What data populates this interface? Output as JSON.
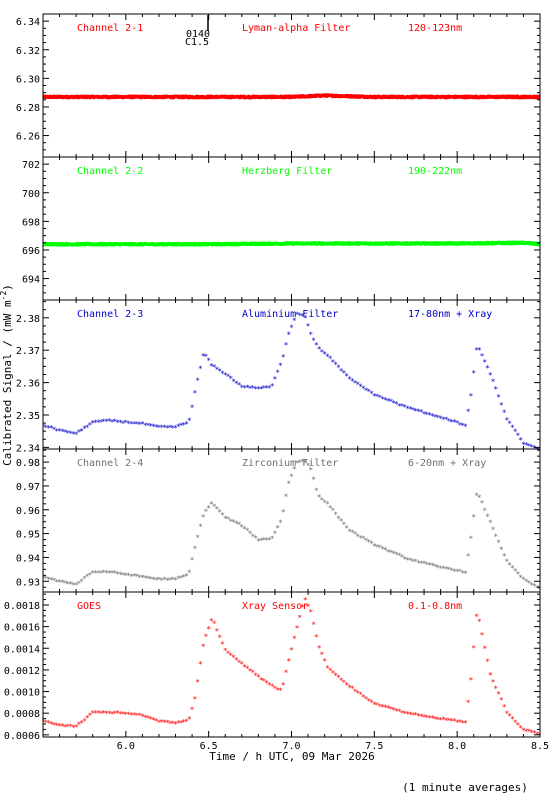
{
  "figure": {
    "ylabel": "Calibrated Signal / (mW m",
    "ylabel_sup": "-2",
    "ylabel_close": ")",
    "xlabel": "Time / h UTC, 09 Mar 2026",
    "footnote": "(1 minute averages)",
    "marker_label_top": "0140",
    "marker_label_bottom": "C1.5",
    "colors": {
      "axes": "#000000",
      "red": "#ff0000",
      "green": "#00ff00",
      "blue": "#0000cc",
      "gray": "#707070",
      "xray": "#ff0000"
    }
  },
  "chart_data": [
    {
      "type": "scatter",
      "labels": [
        "Channel 2-1",
        "Lyman-alpha Filter",
        "120-123nm"
      ],
      "color": "red",
      "ylim": [
        6.245,
        6.345
      ],
      "yticks": [
        6.26,
        6.28,
        6.3,
        6.32,
        6.34
      ],
      "ytick_labels": [
        "6.26",
        "6.28",
        "6.30",
        "6.32",
        "6.34"
      ],
      "x": [
        5.5,
        6.0,
        6.5,
        7.0,
        7.2,
        7.5,
        8.0,
        8.5
      ],
      "y": [
        6.287,
        6.287,
        6.287,
        6.287,
        6.288,
        6.287,
        6.287,
        6.287
      ]
    },
    {
      "type": "scatter",
      "labels": [
        "Channel 2-2",
        "Herzberg Filter",
        "190-222nm"
      ],
      "color": "green",
      "ylim": [
        692.5,
        702.5
      ],
      "yticks": [
        694,
        696,
        698,
        700,
        702
      ],
      "ytick_labels": [
        "694",
        "696",
        "698",
        "700",
        "702"
      ],
      "x": [
        5.5,
        6.0,
        6.5,
        7.0,
        7.5,
        8.0,
        8.4,
        8.5
      ],
      "y": [
        696.4,
        696.4,
        696.4,
        696.45,
        696.45,
        696.45,
        696.5,
        696.4
      ]
    },
    {
      "type": "scatter",
      "labels": [
        "Channel 2-3",
        "Aluminium Filter",
        "17-80nm + Xray"
      ],
      "color": "blue",
      "ylim": [
        2.3395,
        2.3855
      ],
      "yticks": [
        2.34,
        2.35,
        2.36,
        2.37,
        2.38
      ],
      "ytick_labels": [
        "2.34",
        "2.35",
        "2.36",
        "2.37",
        "2.38"
      ],
      "x": [
        5.5,
        5.6,
        5.7,
        5.8,
        5.9,
        6.0,
        6.1,
        6.2,
        6.3,
        6.38,
        6.42,
        6.47,
        6.52,
        6.6,
        6.7,
        6.8,
        6.88,
        6.94,
        6.98,
        7.03,
        7.08,
        7.12,
        7.16,
        7.22,
        7.35,
        7.5,
        7.7,
        7.9,
        8.05,
        8.08,
        8.12,
        8.2,
        8.3,
        8.4,
        8.5
      ],
      "y": [
        2.3465,
        2.345,
        2.344,
        2.3475,
        2.348,
        2.3475,
        2.347,
        2.346,
        2.346,
        2.3475,
        2.3575,
        2.369,
        2.365,
        2.3625,
        2.3585,
        2.358,
        2.3585,
        2.366,
        2.3745,
        2.381,
        2.3805,
        2.3745,
        2.3705,
        2.368,
        2.361,
        2.356,
        2.352,
        2.349,
        2.3465,
        2.3545,
        2.3715,
        2.3625,
        2.3485,
        2.341,
        2.339
      ]
    },
    {
      "type": "scatter",
      "labels": [
        "Channel 2-4",
        "Zirconium Filter",
        "6-20nm + Xray"
      ],
      "color": "gray",
      "ylim": [
        0.9255,
        0.9855
      ],
      "yticks": [
        0.93,
        0.94,
        0.95,
        0.96,
        0.97,
        0.98
      ],
      "ytick_labels": [
        "0.93",
        "0.94",
        "0.95",
        "0.96",
        "0.97",
        "0.98"
      ],
      "x": [
        5.5,
        5.6,
        5.7,
        5.8,
        5.9,
        6.0,
        6.1,
        6.2,
        6.3,
        6.38,
        6.42,
        6.47,
        6.52,
        6.6,
        6.7,
        6.8,
        6.88,
        6.94,
        6.98,
        7.03,
        7.08,
        7.12,
        7.16,
        7.22,
        7.35,
        7.5,
        7.7,
        7.9,
        8.05,
        8.08,
        8.12,
        8.2,
        8.3,
        8.4,
        8.5
      ],
      "y": [
        0.9315,
        0.9295,
        0.9285,
        0.9335,
        0.9335,
        0.9325,
        0.9315,
        0.9305,
        0.9305,
        0.9325,
        0.945,
        0.958,
        0.9625,
        0.9565,
        0.953,
        0.947,
        0.9475,
        0.9555,
        0.9705,
        0.9795,
        0.9805,
        0.9765,
        0.9655,
        0.962,
        0.951,
        0.945,
        0.939,
        0.9355,
        0.9335,
        0.946,
        0.9675,
        0.9545,
        0.938,
        0.9305,
        0.9265
      ]
    },
    {
      "type": "scatter",
      "labels": [
        "GOES",
        "Xray Sensor",
        "0.1-0.8nm"
      ],
      "color": "xray",
      "ylim": [
        0.00058,
        0.00192
      ],
      "yticks": [
        0.0006,
        0.0008,
        0.001,
        0.0012,
        0.0014,
        0.0016,
        0.0018
      ],
      "ytick_labels": [
        "0.0006",
        "0.0008",
        "0.0010",
        "0.0012",
        "0.0014",
        "0.0016",
        "0.0018"
      ],
      "x": [
        5.5,
        5.6,
        5.7,
        5.75,
        5.8,
        5.9,
        6.0,
        6.1,
        6.2,
        6.3,
        6.38,
        6.42,
        6.47,
        6.52,
        6.6,
        6.7,
        6.8,
        6.88,
        6.94,
        6.98,
        7.03,
        7.08,
        7.12,
        7.16,
        7.22,
        7.35,
        7.5,
        7.7,
        7.9,
        8.05,
        8.08,
        8.12,
        8.2,
        8.3,
        8.4,
        8.5
      ],
      "y": [
        0.00072,
        0.00068,
        0.00067,
        0.00073,
        0.0008,
        0.0008,
        0.00079,
        0.00077,
        0.00072,
        0.0007,
        0.00073,
        0.00095,
        0.00145,
        0.00167,
        0.00138,
        0.00125,
        0.00113,
        0.00105,
        0.001,
        0.00126,
        0.00157,
        0.00186,
        0.00172,
        0.00143,
        0.00121,
        0.00104,
        0.00088,
        0.00079,
        0.00074,
        0.00071,
        0.00105,
        0.00175,
        0.00115,
        0.0008,
        0.00064,
        0.0006
      ]
    }
  ],
  "x_axis": {
    "xlim": [
      5.5,
      8.5
    ],
    "ticks": [
      6.0,
      6.5,
      7.0,
      7.5,
      8.0,
      8.5
    ],
    "tick_labels": [
      "6.0",
      "6.5",
      "7.0",
      "7.5",
      "8.0",
      "8.5"
    ]
  }
}
